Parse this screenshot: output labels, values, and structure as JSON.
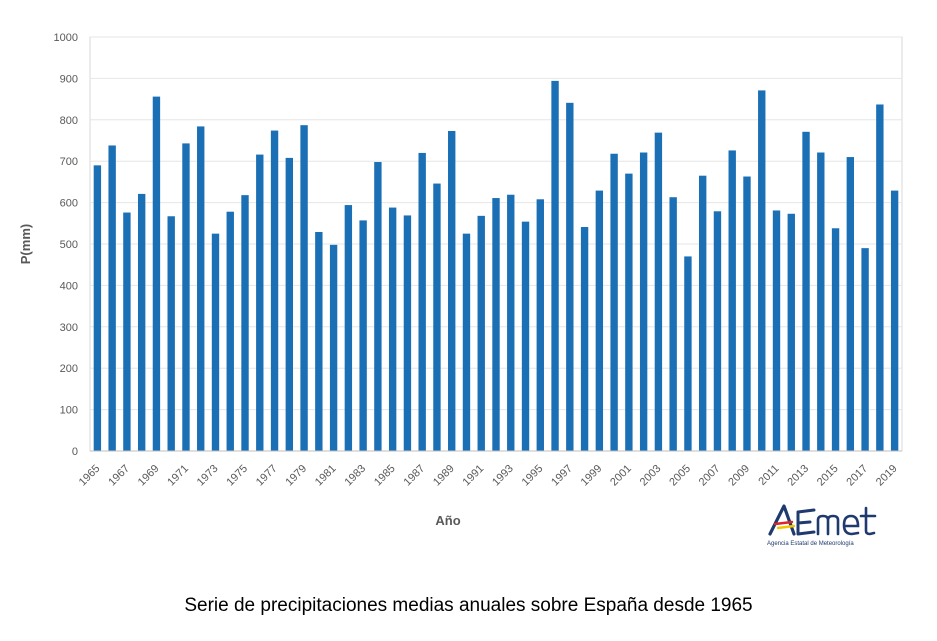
{
  "chart_data": {
    "type": "bar",
    "xlabel": "Año",
    "ylabel": "P(mm)",
    "ylim": [
      0,
      1000
    ],
    "yticks": [
      0,
      100,
      200,
      300,
      400,
      500,
      600,
      700,
      800,
      900,
      1000
    ],
    "grid": true,
    "bar_color": "#1a6fb5",
    "categories": [
      "1965",
      "1966",
      "1967",
      "1968",
      "1969",
      "1970",
      "1971",
      "1972",
      "1973",
      "1974",
      "1975",
      "1976",
      "1977",
      "1978",
      "1979",
      "1980",
      "1981",
      "1982",
      "1983",
      "1984",
      "1985",
      "1986",
      "1987",
      "1988",
      "1989",
      "1990",
      "1991",
      "1992",
      "1993",
      "1994",
      "1995",
      "1996",
      "1997",
      "1998",
      "1999",
      "2000",
      "2001",
      "2002",
      "2003",
      "2004",
      "2005",
      "2006",
      "2007",
      "2008",
      "2009",
      "2010",
      "2011",
      "2012",
      "2013",
      "2014",
      "2015",
      "2016",
      "2017",
      "2018",
      "2019"
    ],
    "values": [
      690,
      738,
      576,
      621,
      856,
      567,
      743,
      784,
      525,
      578,
      618,
      716,
      774,
      708,
      787,
      529,
      498,
      594,
      557,
      698,
      588,
      569,
      720,
      646,
      773,
      525,
      568,
      611,
      619,
      554,
      608,
      894,
      841,
      541,
      629,
      718,
      670,
      721,
      769,
      613,
      470,
      665,
      579,
      726,
      663,
      871,
      581,
      573,
      771,
      721,
      538,
      710,
      490,
      837,
      629
    ]
  },
  "caption": "Serie de precipitaciones medias anuales sobre España desde 1965",
  "logo": {
    "name": "AEmet",
    "tagline": "Agencia Estatal de Meteorología"
  }
}
